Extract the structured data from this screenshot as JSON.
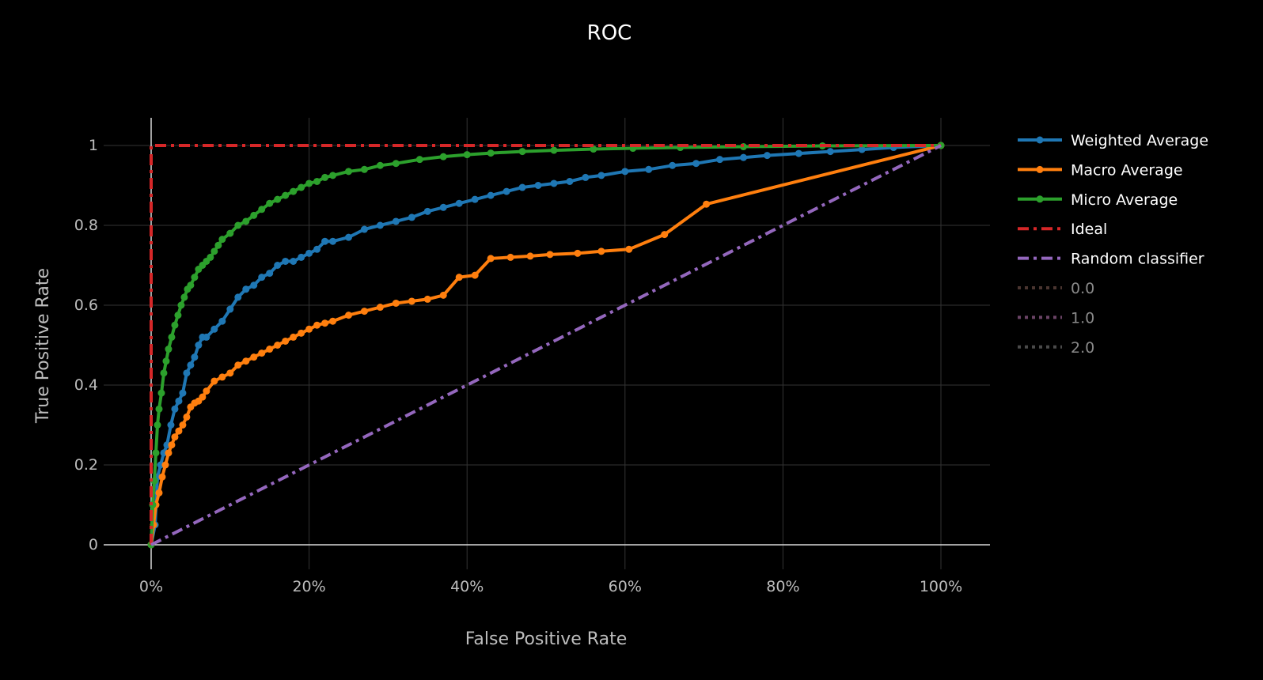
{
  "chart_data": {
    "type": "line",
    "title": "ROC",
    "xlabel": "False Positive Rate",
    "ylabel": "True Positive Rate",
    "xlim": [
      -0.06,
      1.06
    ],
    "ylim": [
      -0.06,
      1.07
    ],
    "x_ticks": [
      {
        "value": 0,
        "label": "0%"
      },
      {
        "value": 0.2,
        "label": "20%"
      },
      {
        "value": 0.4,
        "label": "40%"
      },
      {
        "value": 0.6,
        "label": "60%"
      },
      {
        "value": 0.8,
        "label": "80%"
      },
      {
        "value": 1.0,
        "label": "100%"
      }
    ],
    "y_ticks": [
      {
        "value": 0,
        "label": "0"
      },
      {
        "value": 0.2,
        "label": "0.2"
      },
      {
        "value": 0.4,
        "label": "0.4"
      },
      {
        "value": 0.6,
        "label": "0.6"
      },
      {
        "value": 0.8,
        "label": "0.8"
      },
      {
        "value": 1,
        "label": "1"
      }
    ],
    "grid": true,
    "legend_position": "right",
    "series": [
      {
        "name": "Weighted Average",
        "color": "#1f77b4",
        "style": "solid",
        "markers": true,
        "x": [
          0,
          0.005,
          0.008,
          0.012,
          0.016,
          0.02,
          0.025,
          0.03,
          0.035,
          0.04,
          0.045,
          0.05,
          0.055,
          0.06,
          0.065,
          0.07,
          0.08,
          0.09,
          0.1,
          0.11,
          0.12,
          0.13,
          0.14,
          0.15,
          0.16,
          0.17,
          0.18,
          0.19,
          0.2,
          0.21,
          0.22,
          0.23,
          0.25,
          0.27,
          0.29,
          0.31,
          0.33,
          0.35,
          0.37,
          0.39,
          0.41,
          0.43,
          0.45,
          0.47,
          0.49,
          0.51,
          0.53,
          0.55,
          0.57,
          0.6,
          0.63,
          0.66,
          0.69,
          0.72,
          0.75,
          0.78,
          0.82,
          0.86,
          0.9,
          0.94,
          1.0
        ],
        "y": [
          0,
          0.05,
          0.17,
          0.2,
          0.23,
          0.25,
          0.3,
          0.34,
          0.36,
          0.38,
          0.43,
          0.45,
          0.47,
          0.5,
          0.52,
          0.52,
          0.54,
          0.56,
          0.59,
          0.62,
          0.64,
          0.65,
          0.67,
          0.68,
          0.7,
          0.71,
          0.71,
          0.72,
          0.73,
          0.74,
          0.76,
          0.76,
          0.77,
          0.79,
          0.8,
          0.81,
          0.82,
          0.835,
          0.845,
          0.855,
          0.865,
          0.875,
          0.885,
          0.895,
          0.9,
          0.905,
          0.91,
          0.92,
          0.925,
          0.935,
          0.94,
          0.95,
          0.955,
          0.965,
          0.97,
          0.975,
          0.98,
          0.985,
          0.99,
          0.995,
          1.0
        ]
      },
      {
        "name": "Macro Average",
        "color": "#ff7f0e",
        "style": "solid",
        "markers": true,
        "x": [
          0,
          0.003,
          0.006,
          0.01,
          0.014,
          0.018,
          0.022,
          0.026,
          0.03,
          0.035,
          0.04,
          0.045,
          0.05,
          0.055,
          0.06,
          0.065,
          0.07,
          0.08,
          0.09,
          0.1,
          0.11,
          0.12,
          0.13,
          0.14,
          0.15,
          0.16,
          0.17,
          0.18,
          0.19,
          0.2,
          0.21,
          0.22,
          0.23,
          0.25,
          0.27,
          0.29,
          0.31,
          0.33,
          0.35,
          0.37,
          0.39,
          0.41,
          0.43,
          0.455,
          0.48,
          0.505,
          0.54,
          0.57,
          0.605,
          0.65,
          0.703,
          1.0
        ],
        "y": [
          0,
          0.05,
          0.1,
          0.13,
          0.17,
          0.2,
          0.23,
          0.25,
          0.27,
          0.285,
          0.3,
          0.32,
          0.345,
          0.355,
          0.36,
          0.37,
          0.385,
          0.41,
          0.42,
          0.43,
          0.45,
          0.46,
          0.47,
          0.48,
          0.49,
          0.5,
          0.51,
          0.52,
          0.53,
          0.54,
          0.55,
          0.555,
          0.56,
          0.575,
          0.585,
          0.595,
          0.605,
          0.61,
          0.615,
          0.625,
          0.67,
          0.675,
          0.717,
          0.72,
          0.723,
          0.727,
          0.73,
          0.735,
          0.74,
          0.777,
          0.853,
          1.0
        ]
      },
      {
        "name": "Micro Average",
        "color": "#2ca02c",
        "style": "solid",
        "markers": true,
        "x": [
          0,
          0.002,
          0.004,
          0.006,
          0.008,
          0.01,
          0.013,
          0.016,
          0.019,
          0.022,
          0.026,
          0.03,
          0.034,
          0.038,
          0.042,
          0.046,
          0.05,
          0.055,
          0.06,
          0.065,
          0.07,
          0.075,
          0.08,
          0.085,
          0.09,
          0.1,
          0.11,
          0.12,
          0.13,
          0.14,
          0.15,
          0.16,
          0.17,
          0.18,
          0.19,
          0.2,
          0.21,
          0.22,
          0.23,
          0.25,
          0.27,
          0.29,
          0.31,
          0.34,
          0.37,
          0.4,
          0.43,
          0.47,
          0.51,
          0.56,
          0.61,
          0.67,
          0.75,
          0.85,
          1.0
        ],
        "y": [
          0,
          0.1,
          0.16,
          0.23,
          0.3,
          0.34,
          0.38,
          0.43,
          0.46,
          0.49,
          0.52,
          0.55,
          0.575,
          0.6,
          0.62,
          0.64,
          0.65,
          0.67,
          0.69,
          0.7,
          0.71,
          0.72,
          0.735,
          0.75,
          0.765,
          0.78,
          0.8,
          0.81,
          0.825,
          0.84,
          0.855,
          0.865,
          0.875,
          0.885,
          0.895,
          0.905,
          0.91,
          0.92,
          0.925,
          0.935,
          0.94,
          0.95,
          0.955,
          0.965,
          0.972,
          0.977,
          0.981,
          0.985,
          0.988,
          0.991,
          0.993,
          0.995,
          0.997,
          0.999,
          1.0
        ]
      },
      {
        "name": "Ideal",
        "color": "#d62728",
        "style": "dashdot",
        "markers": false,
        "x": [
          0,
          0,
          1.0
        ],
        "y": [
          0,
          1.0,
          1.0
        ]
      },
      {
        "name": "Random classifier",
        "color": "#9467bd",
        "style": "dashdot",
        "markers": false,
        "x": [
          0,
          1.0
        ],
        "y": [
          0,
          1.0
        ]
      }
    ],
    "legend": [
      {
        "name": "Weighted Average",
        "color": "#1f77b4",
        "style": "solid",
        "markers": true,
        "dim": false
      },
      {
        "name": "Macro Average",
        "color": "#ff7f0e",
        "style": "solid",
        "markers": true,
        "dim": false
      },
      {
        "name": "Micro Average",
        "color": "#2ca02c",
        "style": "solid",
        "markers": true,
        "dim": false
      },
      {
        "name": "Ideal",
        "color": "#d62728",
        "style": "dashdot",
        "markers": false,
        "dim": false
      },
      {
        "name": "Random classifier",
        "color": "#9467bd",
        "style": "dashdot",
        "markers": false,
        "dim": false
      },
      {
        "name": "0.0",
        "color": "#4a3530",
        "style": "dot",
        "markers": false,
        "dim": true
      },
      {
        "name": "1.0",
        "color": "#6b4466",
        "style": "dot",
        "markers": false,
        "dim": true
      },
      {
        "name": "2.0",
        "color": "#4a4a4a",
        "style": "dot",
        "markers": false,
        "dim": true
      }
    ]
  }
}
